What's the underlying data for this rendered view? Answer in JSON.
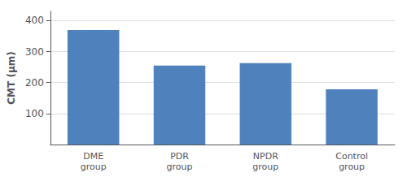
{
  "chart_data": {
    "type": "bar",
    "categories": [
      "DME\ngroup",
      "PDR\ngroup",
      "NPDR\ngroup",
      "Control\ngroup"
    ],
    "values": [
      370,
      255,
      263,
      178
    ],
    "color": "#4F81BD",
    "ylabel": "CMT (μm)",
    "ylim": [
      0,
      430
    ],
    "yticks": [
      100,
      200,
      300,
      400
    ],
    "grid": true
  }
}
